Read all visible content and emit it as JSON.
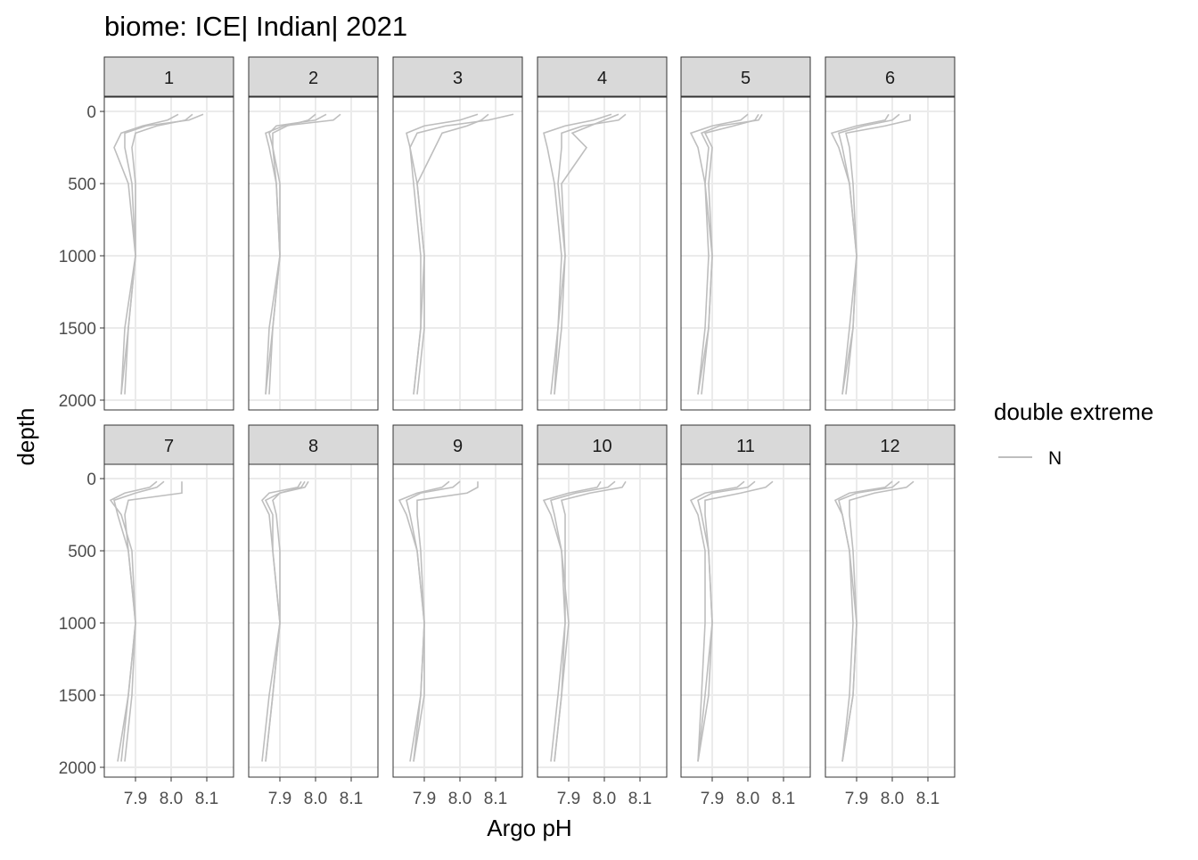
{
  "chart_data": {
    "type": "line",
    "title": "biome: ICE| Indian| 2021",
    "x_label": "Argo pH",
    "y_label": "depth",
    "xlim": [
      7.8125,
      8.175
    ],
    "xticks": [
      7.9,
      {
        "value": 8,
        "label": "8.0"
      },
      8.1
    ],
    "ylim": [
      -99,
      2068
    ],
    "yticks": [
      0,
      500,
      1000,
      1500,
      2000
    ],
    "y_reversed": true,
    "grid": true,
    "color": "#bebebe",
    "legend": {
      "title": "double extreme",
      "entries": [
        {
          "name": "N",
          "color": "#bebebe"
        }
      ]
    },
    "depth": [
      20,
      60,
      100,
      150,
      250,
      500,
      1000,
      1500,
      1960
    ],
    "panels": [
      {
        "label": "1",
        "profiles": [
          [
            8.09,
            8.05,
            7.93,
            7.87,
            7.87,
            7.89,
            7.9,
            7.88,
            7.86
          ],
          [
            8.06,
            8.04,
            7.96,
            7.9,
            7.89,
            7.9,
            7.9,
            7.88,
            7.87
          ],
          [
            8.02,
            7.99,
            7.92,
            7.86,
            7.84,
            7.88,
            7.9,
            7.87,
            7.86
          ]
        ]
      },
      {
        "label": "2",
        "profiles": [
          [
            8.07,
            8.05,
            7.91,
            7.86,
            7.87,
            7.89,
            7.9,
            7.88,
            7.86
          ],
          [
            8.03,
            8.0,
            7.89,
            7.87,
            7.88,
            7.89,
            7.9,
            7.88,
            7.87
          ],
          [
            8.0,
            7.98,
            7.92,
            7.88,
            7.88,
            7.9,
            7.9,
            7.87,
            7.86
          ]
        ]
      },
      {
        "label": "3",
        "profiles": [
          [
            8.15,
            8.08,
            7.96,
            7.88,
            7.86,
            7.87,
            7.89,
            7.89,
            7.87
          ],
          [
            8.08,
            8.06,
            8.02,
            7.95,
            7.93,
            7.88,
            7.9,
            7.9,
            7.88
          ],
          [
            8.05,
            8.0,
            7.9,
            7.85,
            7.86,
            7.88,
            7.9,
            7.89,
            7.87
          ]
        ]
      },
      {
        "label": "4",
        "profiles": [
          [
            8.06,
            8.04,
            7.94,
            7.88,
            7.88,
            7.87,
            7.89,
            7.88,
            7.86
          ],
          [
            8.04,
            8.0,
            7.96,
            7.91,
            7.95,
            7.88,
            7.89,
            7.87,
            7.85
          ],
          [
            8.02,
            7.97,
            7.89,
            7.83,
            7.84,
            7.86,
            7.88,
            7.87,
            7.86
          ]
        ]
      },
      {
        "label": "5",
        "profiles": [
          [
            8.04,
            8.03,
            7.92,
            7.87,
            7.89,
            7.88,
            7.9,
            7.89,
            7.87
          ],
          [
            8.03,
            8.02,
            7.96,
            7.88,
            7.9,
            7.89,
            7.9,
            7.89,
            7.86
          ],
          [
            8.0,
            7.98,
            7.9,
            7.84,
            7.86,
            7.88,
            7.89,
            7.88,
            7.86
          ]
        ]
      },
      {
        "label": "6",
        "profiles": [
          [
            8.05,
            8.05,
            7.98,
            7.87,
            7.88,
            7.89,
            7.9,
            7.89,
            7.87
          ],
          [
            8.02,
            8.0,
            7.92,
            7.85,
            7.86,
            7.88,
            7.9,
            7.89,
            7.86
          ],
          [
            7.99,
            7.98,
            7.9,
            7.83,
            7.85,
            7.88,
            7.9,
            7.88,
            7.86
          ]
        ]
      },
      {
        "label": "7",
        "profiles": [
          [
            8.03,
            8.03,
            8.03,
            7.88,
            7.87,
            7.88,
            7.9,
            7.88,
            7.86
          ],
          [
            7.98,
            7.96,
            7.9,
            7.84,
            7.85,
            7.88,
            7.9,
            7.88,
            7.85
          ],
          [
            7.96,
            7.94,
            7.87,
            7.83,
            7.86,
            7.89,
            7.9,
            7.89,
            7.87
          ]
        ]
      },
      {
        "label": "8",
        "profiles": [
          [
            7.98,
            7.97,
            7.9,
            7.86,
            7.88,
            7.88,
            7.9,
            7.88,
            7.86
          ],
          [
            7.96,
            7.95,
            7.87,
            7.85,
            7.87,
            7.88,
            7.9,
            7.87,
            7.85
          ],
          [
            7.97,
            7.96,
            7.9,
            7.88,
            7.89,
            7.9,
            7.9,
            7.88,
            7.86
          ]
        ]
      },
      {
        "label": "9",
        "profiles": [
          [
            8.05,
            8.05,
            8.02,
            7.88,
            7.88,
            7.89,
            7.9,
            7.89,
            7.87
          ],
          [
            8.0,
            7.98,
            7.89,
            7.85,
            7.86,
            7.88,
            7.9,
            7.89,
            7.86
          ],
          [
            7.97,
            7.95,
            7.88,
            7.83,
            7.85,
            7.88,
            7.9,
            7.9,
            7.87
          ]
        ]
      },
      {
        "label": "10",
        "profiles": [
          [
            8.06,
            8.05,
            7.96,
            7.88,
            7.89,
            7.89,
            7.89,
            7.88,
            7.86
          ],
          [
            8.03,
            8.01,
            7.92,
            7.85,
            7.86,
            7.88,
            7.9,
            7.88,
            7.86
          ],
          [
            7.99,
            7.98,
            7.9,
            7.83,
            7.85,
            7.88,
            7.89,
            7.87,
            7.85
          ]
        ]
      },
      {
        "label": "11",
        "profiles": [
          [
            8.07,
            8.05,
            7.98,
            7.88,
            7.88,
            7.89,
            7.9,
            7.89,
            7.86
          ],
          [
            8.02,
            8.0,
            7.9,
            7.86,
            7.87,
            7.89,
            7.9,
            7.88,
            7.86
          ],
          [
            7.99,
            7.97,
            7.88,
            7.84,
            7.86,
            7.88,
            7.88,
            7.87,
            7.86
          ]
        ]
      },
      {
        "label": "12",
        "profiles": [
          [
            8.06,
            8.04,
            7.95,
            7.88,
            7.88,
            7.89,
            7.9,
            7.89,
            7.86
          ],
          [
            8.02,
            8.0,
            7.9,
            7.85,
            7.86,
            7.88,
            7.9,
            7.89,
            7.86
          ],
          [
            8.0,
            7.98,
            7.88,
            7.84,
            7.86,
            7.88,
            7.89,
            7.88,
            7.86
          ]
        ]
      }
    ]
  }
}
